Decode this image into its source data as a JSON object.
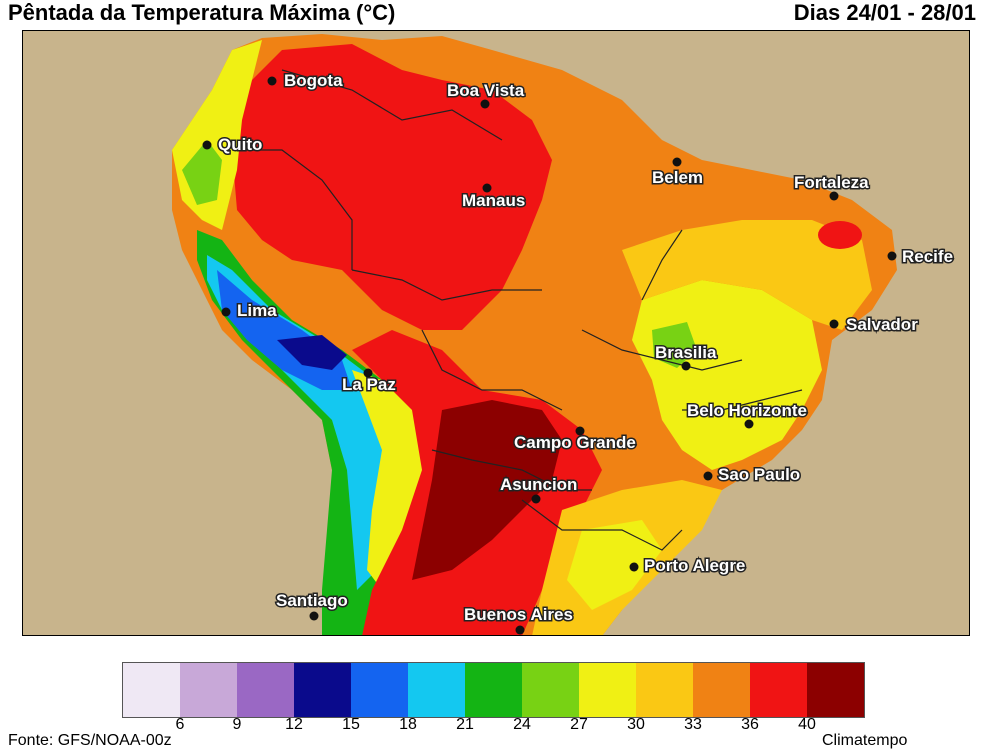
{
  "header": {
    "title": "Pêntada da Temperatura Máxima (°C)",
    "dates": "Dias 24/01 - 28/01"
  },
  "cities": [
    {
      "name": "Bogota"
    },
    {
      "name": "Boa Vista"
    },
    {
      "name": "Quito"
    },
    {
      "name": "Manaus"
    },
    {
      "name": "Belem"
    },
    {
      "name": "Fortaleza"
    },
    {
      "name": "Recife"
    },
    {
      "name": "Lima"
    },
    {
      "name": "Salvador"
    },
    {
      "name": "Brasilia"
    },
    {
      "name": "La Paz"
    },
    {
      "name": "Belo Horizonte"
    },
    {
      "name": "Campo Grande"
    },
    {
      "name": "Sao Paulo"
    },
    {
      "name": "Asuncion"
    },
    {
      "name": "Porto Alegre"
    },
    {
      "name": "Santiago"
    },
    {
      "name": "Buenos Aires"
    }
  ],
  "legend": {
    "colors": [
      "#efe8f4",
      "#c8a8d8",
      "#9a68c4",
      "#0a0a8c",
      "#1464f0",
      "#14c8f0",
      "#14b414",
      "#78d214",
      "#f0f014",
      "#fac814",
      "#f08214",
      "#f01414",
      "#8c0000"
    ],
    "ticks": [
      "6",
      "9",
      "12",
      "15",
      "18",
      "21",
      "24",
      "27",
      "30",
      "33",
      "36",
      "40"
    ]
  },
  "footer": {
    "source": "Fonte: GFS/NOAA-00z",
    "credit": "Climatempo"
  }
}
